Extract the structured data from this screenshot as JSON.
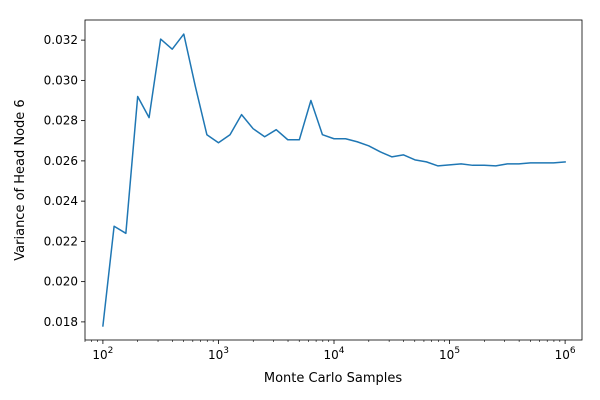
{
  "chart_data": {
    "type": "line",
    "title": "",
    "xlabel": "Monte Carlo Samples",
    "ylabel": "Variance of Head Node 6",
    "xscale": "log",
    "xlim": [
      70,
      1400000
    ],
    "ylim": [
      0.0171,
      0.033
    ],
    "grid": false,
    "legend": "none",
    "line_color": "#1f77b4",
    "x_ticks": [
      {
        "value": 100,
        "base": "10",
        "exponent": "2"
      },
      {
        "value": 1000,
        "base": "10",
        "exponent": "3"
      },
      {
        "value": 10000,
        "base": "10",
        "exponent": "4"
      },
      {
        "value": 100000,
        "base": "10",
        "exponent": "5"
      },
      {
        "value": 1000000,
        "base": "10",
        "exponent": "6"
      }
    ],
    "y_ticks": [
      {
        "value": 0.018,
        "label": "0.018"
      },
      {
        "value": 0.02,
        "label": "0.020"
      },
      {
        "value": 0.022,
        "label": "0.022"
      },
      {
        "value": 0.024,
        "label": "0.024"
      },
      {
        "value": 0.026,
        "label": "0.026"
      },
      {
        "value": 0.028,
        "label": "0.028"
      },
      {
        "value": 0.03,
        "label": "0.030"
      },
      {
        "value": 0.032,
        "label": "0.032"
      }
    ],
    "series": [
      {
        "x": [
          100,
          125,
          158,
          200,
          251,
          316,
          398,
          501,
          631,
          794,
          1000,
          1259,
          1585,
          1995,
          2512,
          3162,
          3981,
          5012,
          6310,
          7943,
          10000,
          12589,
          15849,
          19953,
          25119,
          31623,
          39811,
          50119,
          63096,
          79433,
          100000,
          125893,
          158489,
          199526,
          251189,
          316228,
          398107,
          501187,
          630957,
          794328,
          1000000
        ],
        "y": [
          0.0178,
          0.02275,
          0.0224,
          0.0292,
          0.02815,
          0.03205,
          0.03155,
          0.0323,
          0.0297,
          0.0273,
          0.0269,
          0.0273,
          0.0283,
          0.0276,
          0.0272,
          0.02755,
          0.02705,
          0.02705,
          0.029,
          0.0273,
          0.0271,
          0.0271,
          0.02695,
          0.02675,
          0.02645,
          0.0262,
          0.0263,
          0.02605,
          0.02595,
          0.02575,
          0.0258,
          0.02585,
          0.02578,
          0.02578,
          0.02575,
          0.02585,
          0.02585,
          0.0259,
          0.0259,
          0.0259,
          0.02595
        ]
      }
    ]
  }
}
